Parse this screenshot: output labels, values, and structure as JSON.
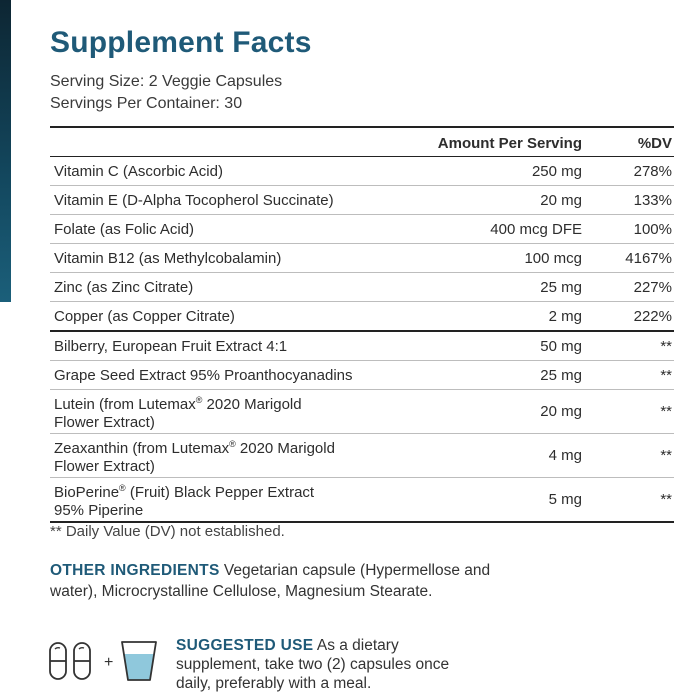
{
  "panel": {
    "title": "Supplement Facts",
    "serving_size": "Serving Size: 2 Veggie Capsules",
    "servings_per_container": "Servings Per Container: 30"
  },
  "table": {
    "headers": {
      "name": "",
      "amount": "Amount Per Serving",
      "dv": "%DV"
    },
    "rows": [
      {
        "name": "Vitamin C (Ascorbic Acid)",
        "amount": "250 mg",
        "dv": "278%"
      },
      {
        "name": "Vitamin E (D-Alpha Tocopherol Succinate)",
        "amount": "20 mg",
        "dv": "133%"
      },
      {
        "name": "Folate (as Folic Acid)",
        "amount": "400 mcg DFE",
        "dv": "100%"
      },
      {
        "name": "Vitamin B12 (as Methylcobalamin)",
        "amount": "100 mcg",
        "dv": "4167%"
      },
      {
        "name": "Zinc (as Zinc Citrate)",
        "amount": "25 mg",
        "dv": "227%"
      },
      {
        "name": "Copper (as Copper Citrate)",
        "amount": "2 mg",
        "dv": "222%"
      },
      {
        "name": "Bilberry, European Fruit Extract 4:1",
        "amount": "50 mg",
        "dv": "**"
      },
      {
        "name": "Grape Seed Extract 95% Proanthocyanadins",
        "amount": "25 mg",
        "dv": "**"
      },
      {
        "name_line1": "Lutein (from Lutemax",
        "name_line1_after": " 2020 Marigold",
        "name_line2": "Flower Extract)",
        "amount": "20 mg",
        "dv": "**"
      },
      {
        "name_line1": "Zeaxanthin (from Lutemax",
        "name_line1_after": " 2020 Marigold",
        "name_line2": "Flower Extract)",
        "amount": "4 mg",
        "dv": "**"
      },
      {
        "name_line1": "BioPerine",
        "name_line1_after": " (Fruit) Black Pepper Extract",
        "name_line2": "95% Piperine",
        "amount": "5 mg",
        "dv": "**"
      }
    ],
    "registered_mark": "®"
  },
  "footnote": "** Daily Value (DV) not established.",
  "other_ingredients": {
    "label": "OTHER INGREDIENTS",
    "text": " Vegetarian capsule (Hypermellose and water), Microcrystalline Cellulose, Magnesium Stearate."
  },
  "suggested_use": {
    "label": "SUGGESTED USE",
    "text": " As a dietary supplement, take two (2) capsules once daily, preferably with a meal.",
    "plus_sign": "+"
  },
  "colors": {
    "accent": "#1f5a78",
    "side_bar": "#13485f",
    "water": "#8fc8dc"
  }
}
